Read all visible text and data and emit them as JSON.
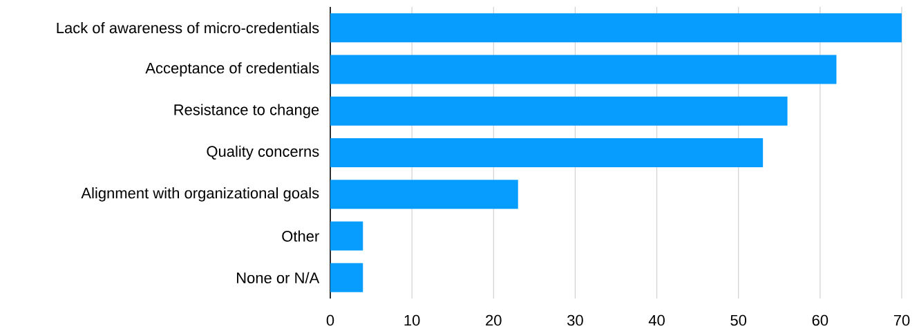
{
  "chart_data": {
    "type": "bar",
    "orientation": "horizontal",
    "categories": [
      "Lack of awareness of micro-credentials",
      "Acceptance of credentials",
      "Resistance to change",
      "Quality concerns",
      "Alignment with organizational goals",
      "Other",
      "None or N/A"
    ],
    "values": [
      70,
      62,
      56,
      53,
      23,
      4,
      4
    ],
    "color": "#069dff",
    "xlim": [
      0,
      70
    ],
    "xticks": [
      0,
      10,
      20,
      30,
      40,
      50,
      60,
      70
    ],
    "grid": "x"
  }
}
